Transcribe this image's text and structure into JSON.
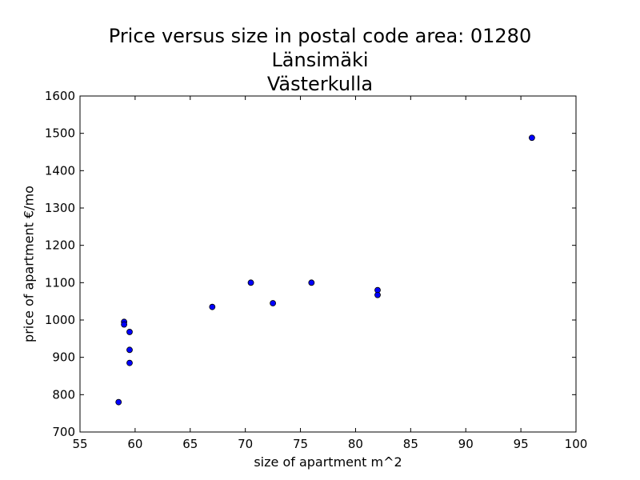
{
  "chart_data": {
    "type": "scatter",
    "title": [
      "Price versus size in postal code area: 01280",
      "Länsimäki",
      "Västerkulla"
    ],
    "xlabel": "size of apartment m^2",
    "ylabel": "price of apartment €/mo",
    "xlim": [
      55,
      100
    ],
    "ylim": [
      700,
      1600
    ],
    "xticks": [
      55,
      60,
      65,
      70,
      75,
      80,
      85,
      90,
      95,
      100
    ],
    "yticks": [
      700,
      800,
      900,
      1000,
      1100,
      1200,
      1300,
      1400,
      1500,
      1600
    ],
    "grid": false,
    "marker_color": "#0000ff",
    "series": [
      {
        "points": [
          {
            "x": 58.5,
            "y": 780
          },
          {
            "x": 59.0,
            "y": 995
          },
          {
            "x": 59.0,
            "y": 988
          },
          {
            "x": 59.5,
            "y": 968
          },
          {
            "x": 59.5,
            "y": 920
          },
          {
            "x": 59.5,
            "y": 885
          },
          {
            "x": 67.0,
            "y": 1035
          },
          {
            "x": 70.5,
            "y": 1100
          },
          {
            "x": 72.5,
            "y": 1045
          },
          {
            "x": 76.0,
            "y": 1100
          },
          {
            "x": 82.0,
            "y": 1080
          },
          {
            "x": 82.0,
            "y": 1067
          },
          {
            "x": 96.0,
            "y": 1488
          }
        ]
      }
    ]
  }
}
